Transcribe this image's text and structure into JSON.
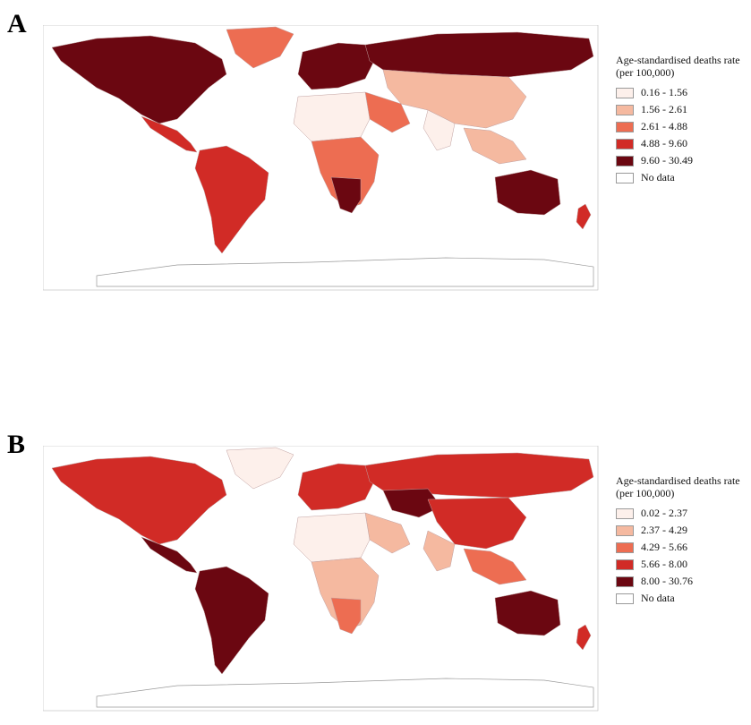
{
  "panels": [
    {
      "letter": "A",
      "legend": {
        "title": "Age-standardised deaths rate (per 100,000)",
        "items": [
          {
            "label": "0.16 - 1.56",
            "color": "#fdf0eb"
          },
          {
            "label": "1.56 - 2.61",
            "color": "#f5b9a0"
          },
          {
            "label": "2.61 - 4.88",
            "color": "#ed6d52"
          },
          {
            "label": "4.88 - 9.60",
            "color": "#d12b26"
          },
          {
            "label": "9.60 - 30.49",
            "color": "#6b0711"
          },
          {
            "label": "No data",
            "color": "#ffffff"
          }
        ]
      }
    },
    {
      "letter": "B",
      "legend": {
        "title": "Age-standardised deaths rate (per 100,000)",
        "items": [
          {
            "label": "0.02 - 2.37",
            "color": "#fdf0eb"
          },
          {
            "label": "2.37 - 4.29",
            "color": "#f5b9a0"
          },
          {
            "label": "4.29 - 5.66",
            "color": "#ed6d52"
          },
          {
            "label": "5.66 - 8.00",
            "color": "#d12b26"
          },
          {
            "label": "8.00 - 30.76",
            "color": "#6b0711"
          },
          {
            "label": "No data",
            "color": "#ffffff"
          }
        ]
      }
    }
  ]
}
